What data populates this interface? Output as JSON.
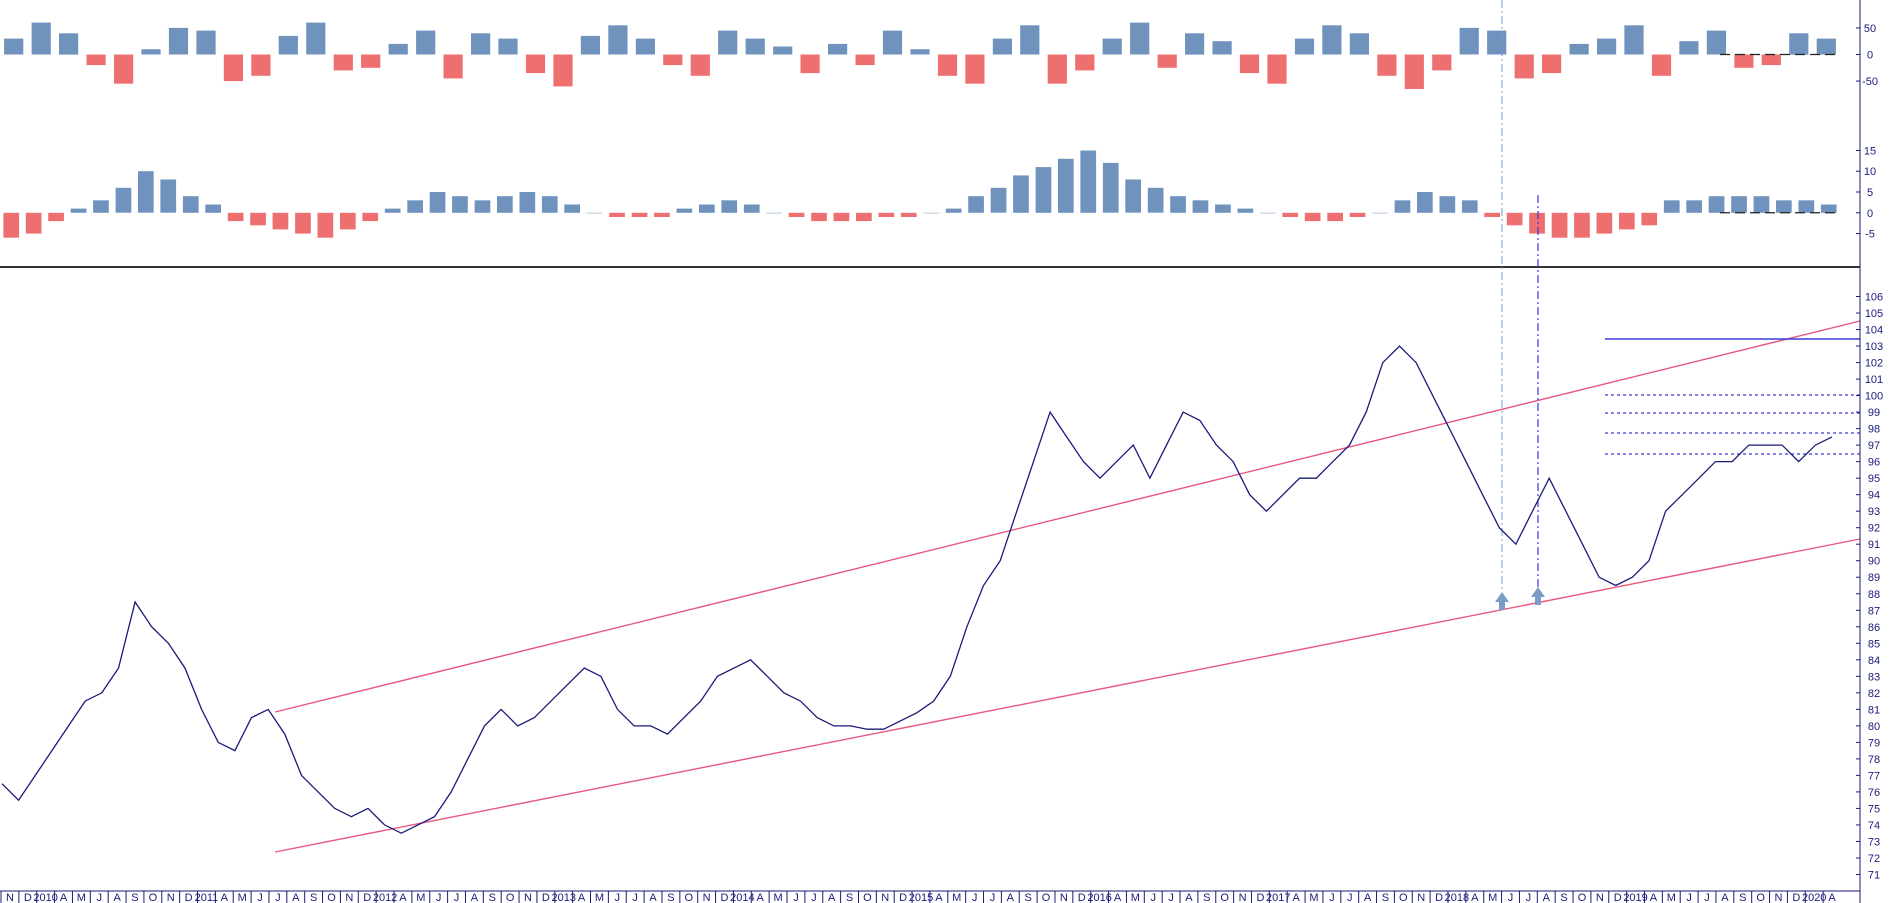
{
  "colors": {
    "background": "#ffffff",
    "price_line": "#1a1a7a",
    "histogram_positive": "#6f93bd",
    "histogram_negative": "#ee6f6f",
    "channel": "#e8577f",
    "resistance": "#3a3adb",
    "guide": "#6f9ad6",
    "arrow": "#7a9cc6",
    "axis": "#1a1a7a",
    "separator": "#333333"
  },
  "chart_data": [
    {
      "type": "bar",
      "panel": "oscillator-upper",
      "x_start": "2009-11",
      "x_end": "2019-04",
      "ylim": [
        -80,
        80
      ],
      "y_ticks": [
        "0",
        "50",
        "-50"
      ],
      "baseline": 0,
      "series": [
        {
          "values": [
            30,
            60,
            40,
            -20,
            -55,
            10,
            50,
            45,
            -50,
            -40,
            35,
            60,
            -30,
            -25,
            20,
            45,
            -45,
            40,
            30,
            -35,
            -60,
            35,
            55,
            30,
            -20,
            -40,
            45,
            30,
            15,
            -35,
            20,
            -20,
            45,
            10,
            -40,
            -55,
            30,
            55,
            -55,
            -30,
            30,
            60,
            -25,
            40,
            25,
            -35,
            -55,
            30,
            55,
            40,
            -40,
            -65,
            -30,
            50,
            45,
            -45,
            -35,
            20,
            30,
            55,
            -40,
            25,
            45,
            -25,
            -20,
            40,
            30
          ]
        }
      ]
    },
    {
      "type": "bar",
      "panel": "oscillator-lower",
      "x_start": "2009-11",
      "x_end": "2019-04",
      "ylim": [
        -8,
        18
      ],
      "y_ticks": [
        "15",
        "10",
        "5",
        "0",
        "-5"
      ],
      "baseline": 0,
      "series": [
        {
          "values": [
            -6,
            -5,
            -2,
            1,
            3,
            6,
            10,
            8,
            4,
            2,
            -2,
            -3,
            -4,
            -5,
            -6,
            -4,
            -2,
            1,
            3,
            5,
            4,
            3,
            4,
            5,
            4,
            2,
            0,
            -1,
            -1,
            -1,
            1,
            2,
            3,
            2,
            0,
            -1,
            -2,
            -2,
            -2,
            -1,
            -1,
            0,
            1,
            4,
            6,
            9,
            11,
            13,
            15,
            12,
            8,
            6,
            4,
            3,
            2,
            1,
            0,
            -1,
            -2,
            -2,
            -1,
            0,
            3,
            5,
            4,
            3,
            -1,
            -3,
            -5,
            -6,
            -6,
            -5,
            -4,
            -3,
            3,
            3,
            4,
            4,
            4,
            3,
            3,
            2
          ]
        }
      ]
    },
    {
      "type": "line",
      "panel": "price",
      "x_start": "2009-11",
      "x_end": "2019-04",
      "ylim": [
        70,
        107
      ],
      "y_ticks": [
        "71",
        "72",
        "73",
        "74",
        "75",
        "76",
        "77",
        "78",
        "79",
        "80",
        "81",
        "82",
        "83",
        "84",
        "85",
        "86",
        "87",
        "88",
        "89",
        "90",
        "91",
        "92",
        "93",
        "94",
        "95",
        "96",
        "97",
        "98",
        "99",
        "100",
        "101",
        "102",
        "103",
        "104",
        "105",
        "106"
      ],
      "series": [
        {
          "values": [
            76.5,
            75.5,
            77,
            78.5,
            80,
            81.5,
            82,
            83.5,
            87.5,
            86,
            85,
            83.5,
            81,
            79,
            78.5,
            80.5,
            81,
            79.5,
            77,
            76,
            75,
            74.5,
            75,
            74,
            73.5,
            74,
            74.5,
            76,
            78,
            80,
            81,
            80,
            80.5,
            81.5,
            82.5,
            83.5,
            83,
            81,
            80,
            80,
            79.5,
            80.5,
            81.5,
            83,
            83.5,
            84,
            83,
            82,
            81.5,
            80.5,
            80,
            80,
            79.8,
            79.8,
            80.3,
            80.8,
            81.5,
            83,
            86,
            88.5,
            90,
            93,
            96,
            99,
            97.5,
            96,
            95,
            96,
            97,
            95,
            97,
            99,
            98.5,
            97,
            96,
            94,
            93,
            94,
            95,
            95,
            96,
            97,
            99,
            102,
            103,
            102,
            100,
            98,
            96,
            94,
            92,
            91,
            93,
            95,
            93,
            91,
            89,
            88.5,
            89,
            90,
            93,
            94,
            95,
            96,
            96,
            97,
            97,
            97,
            96,
            97,
            97.5
          ]
        }
      ],
      "x_tick_labels": [
        "N",
        "D",
        "2010",
        "A",
        "M",
        "J",
        "A",
        "S",
        "O",
        "N",
        "D",
        "2011",
        "A",
        "M",
        "J",
        "J",
        "A",
        "S",
        "O",
        "N",
        "D",
        "2012",
        "A",
        "M",
        "J",
        "J",
        "A",
        "S",
        "O",
        "N",
        "D",
        "2013",
        "A",
        "M",
        "J",
        "J",
        "A",
        "S",
        "O",
        "N",
        "D",
        "2014",
        "A",
        "M",
        "J",
        "J",
        "A",
        "S",
        "O",
        "N",
        "D",
        "2015",
        "A",
        "M",
        "J",
        "J",
        "A",
        "S",
        "O",
        "N",
        "D",
        "2016",
        "A",
        "M",
        "J",
        "J",
        "A",
        "S",
        "O",
        "N",
        "D",
        "2017",
        "A",
        "M",
        "J",
        "J",
        "A",
        "S",
        "O",
        "N",
        "D",
        "2018",
        "A",
        "M",
        "J",
        "J",
        "A",
        "S",
        "O",
        "N",
        "D",
        "2019",
        "A",
        "M",
        "J",
        "J",
        "A",
        "S",
        "O",
        "N",
        "D",
        "2020",
        "A"
      ]
    }
  ]
}
